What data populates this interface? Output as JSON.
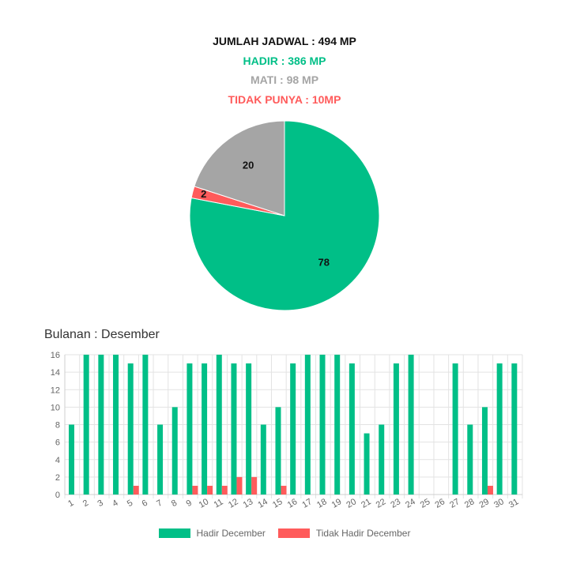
{
  "summary": {
    "total": "JUMLAH JADWAL : 494 MP",
    "hadir": "HADIR : 386 MP",
    "mati": "MATI : 98 MP",
    "tidak_punya": "TIDAK PUNYA : 10MP"
  },
  "colors": {
    "hadir": "#00BF87",
    "mati": "#A5A5A5",
    "tidak": "#FF5B5B",
    "total": "#111111"
  },
  "chart_data": [
    {
      "type": "pie",
      "slices": [
        {
          "value": 78,
          "label": "78",
          "color": "#00BF87"
        },
        {
          "value": 2,
          "label": "2",
          "color": "#FF5B5B"
        },
        {
          "value": 20,
          "label": "20",
          "color": "#A5A5A5"
        }
      ]
    },
    {
      "type": "bar",
      "title": "Bulanan : Desember",
      "categories": [
        "1",
        "2",
        "3",
        "4",
        "5",
        "6",
        "7",
        "8",
        "9",
        "10",
        "11",
        "12",
        "13",
        "14",
        "15",
        "16",
        "17",
        "18",
        "19",
        "20",
        "21",
        "22",
        "23",
        "24",
        "25",
        "26",
        "27",
        "28",
        "29",
        "30",
        "31"
      ],
      "series": [
        {
          "name": "Hadir December",
          "color": "#00BF87",
          "values": [
            8,
            16,
            16,
            16,
            15,
            16,
            8,
            10,
            15,
            15,
            16,
            15,
            15,
            8,
            10,
            15,
            16,
            16,
            16,
            15,
            7,
            8,
            15,
            16,
            0,
            0,
            15,
            8,
            10,
            15,
            15
          ]
        },
        {
          "name": "Tidak Hadir December",
          "color": "#FF5B5B",
          "values": [
            0,
            0,
            0,
            0,
            1,
            0,
            0,
            0,
            1,
            1,
            1,
            2,
            2,
            0,
            1,
            0,
            0,
            0,
            0,
            0,
            0,
            0,
            0,
            0,
            0,
            0,
            0,
            0,
            1,
            0,
            0
          ]
        }
      ],
      "ylim": [
        0,
        16
      ],
      "yticks": [
        0,
        2,
        4,
        6,
        8,
        10,
        12,
        14,
        16
      ],
      "grid": true,
      "legend": "bottom"
    }
  ]
}
